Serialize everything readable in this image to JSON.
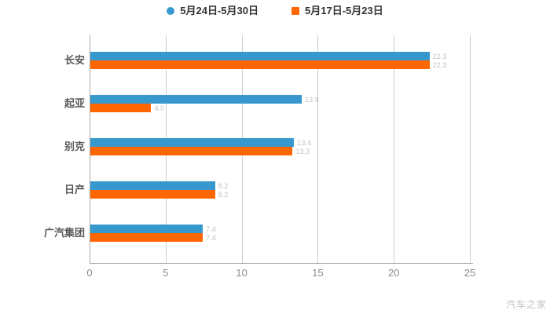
{
  "watermark": "汽车之家",
  "colors": {
    "series_blue": "#3798CE",
    "series_orange": "#FF6600",
    "grid": "#CCCCCC",
    "axis": "#AAAAAA",
    "tick_text": "#8C8C8C",
    "category_text": "#595959",
    "legend_text": "#333333",
    "watermark_text": "#C0C0C0"
  },
  "chart_data": {
    "type": "bar",
    "orientation": "horizontal",
    "title": "",
    "xlabel": "",
    "ylabel": "",
    "categories": [
      "长安",
      "起亚",
      "别克",
      "日产",
      "广汽集团"
    ],
    "series": [
      {
        "name": "5月24日-5月30日",
        "color": "#3798CE",
        "marker": "circle",
        "values": [
          22.3,
          13.9,
          13.4,
          8.2,
          7.4
        ]
      },
      {
        "name": "5月17日-5月23日",
        "color": "#FF6600",
        "marker": "square",
        "values": [
          22.3,
          4.0,
          13.3,
          8.2,
          7.4
        ]
      }
    ],
    "xlim": [
      0,
      25
    ],
    "xticks": [
      0,
      5,
      10,
      15,
      20,
      25
    ],
    "grid": true,
    "legend_position": "top"
  }
}
